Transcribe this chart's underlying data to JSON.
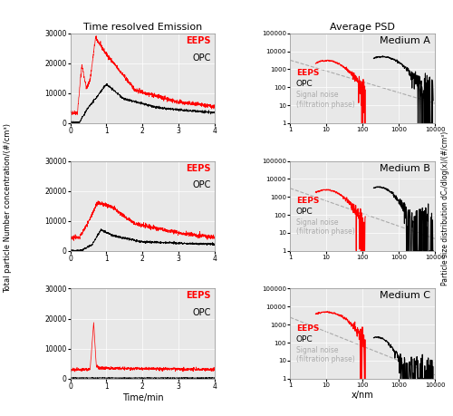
{
  "title_left": "Time resolved Emission",
  "title_right": "Average PSD",
  "ylabel_left": "Total particle Number concentration/(#/cm³)",
  "ylabel_right": "Particle size distribution dCₙ/dlog(x)/(#/cm³)",
  "xlabel_left": "Time/min",
  "xlabel_right": "x/nm",
  "medium_labels": [
    "Medium A",
    "Medium B",
    "Medium C"
  ],
  "eeps_color": "#ff0000",
  "opc_color": "#000000",
  "noise_color": "#aaaaaa",
  "legend_eeps": "EEPS",
  "legend_opc": "OPC",
  "legend_noise": "Signal noise\n(filtration phase)",
  "bg_color": "#e8e8e8"
}
